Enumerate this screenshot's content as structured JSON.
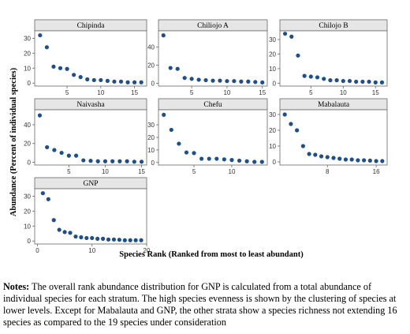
{
  "chart_data": [
    {
      "type": "scatter",
      "title": "Chipinda",
      "color": "#1c4f8c",
      "x": [
        1,
        2,
        3,
        4,
        5,
        6,
        7,
        8,
        9,
        10,
        11,
        12,
        13,
        14,
        15,
        16
      ],
      "values": [
        32,
        24,
        11,
        10,
        9.5,
        5.5,
        4,
        2.5,
        2,
        2,
        1.5,
        1,
        1,
        0.5,
        0.5,
        0.5
      ],
      "xlim": [
        0.2,
        16.8
      ],
      "ylim": [
        -2,
        35
      ],
      "xticks": [
        5,
        10,
        15
      ],
      "yticks": [
        0,
        10,
        20,
        30
      ]
    },
    {
      "type": "scatter",
      "title": "Chiliojo A",
      "color": "#1c4f8c",
      "x": [
        1,
        2,
        3,
        4,
        5,
        6,
        7,
        8,
        9,
        10,
        11,
        12,
        13,
        14,
        15
      ],
      "values": [
        53,
        17,
        16,
        6,
        5,
        4,
        3.5,
        3,
        3,
        2.5,
        2.5,
        2,
        2,
        1.5,
        1
      ],
      "xlim": [
        0.3,
        15.7
      ],
      "ylim": [
        -3,
        58
      ],
      "xticks": [
        5,
        10,
        15
      ],
      "yticks": [
        0,
        20,
        40
      ]
    },
    {
      "type": "scatter",
      "title": "Chilojo B",
      "color": "#1c4f8c",
      "x": [
        1,
        2,
        3,
        4,
        5,
        6,
        7,
        8,
        9,
        10,
        11,
        12,
        13,
        14,
        15,
        16
      ],
      "values": [
        34,
        32,
        19,
        5,
        4.5,
        4,
        3,
        2,
        2,
        1.5,
        1.5,
        1,
        1,
        1,
        0.5,
        0.5
      ],
      "xlim": [
        0.2,
        16.8
      ],
      "ylim": [
        -2,
        36
      ],
      "xticks": [
        5,
        10,
        15
      ],
      "yticks": [
        0,
        10,
        20,
        30
      ]
    },
    {
      "type": "scatter",
      "title": "Naivasha",
      "color": "#1c4f8c",
      "x": [
        1,
        2,
        3,
        4,
        5,
        6,
        7,
        8,
        9,
        10,
        11,
        12,
        13,
        14,
        15
      ],
      "values": [
        50,
        16,
        13,
        10,
        7,
        7,
        2,
        1.5,
        1,
        1,
        1,
        1,
        1,
        0.5,
        0.5
      ],
      "xlim": [
        0.3,
        15.7
      ],
      "ylim": [
        -3,
        56
      ],
      "xticks": [
        5,
        10,
        15
      ],
      "yticks": [
        0,
        20,
        40
      ]
    },
    {
      "type": "scatter",
      "title": "Chefu",
      "color": "#1c4f8c",
      "x": [
        1,
        2,
        3,
        4,
        5,
        6,
        7,
        8,
        9,
        10,
        11,
        12,
        13,
        14
      ],
      "values": [
        38,
        26,
        15,
        8,
        7.5,
        3,
        3,
        3,
        2.5,
        2,
        1.5,
        1,
        0.5,
        0.5
      ],
      "xlim": [
        0.3,
        14.7
      ],
      "ylim": [
        -2,
        42
      ],
      "xticks": [
        5,
        10
      ],
      "yticks": [
        0,
        10,
        20,
        30
      ]
    },
    {
      "type": "scatter",
      "title": "Mabalauta",
      "color": "#1c4f8c",
      "x": [
        1,
        2,
        3,
        4,
        5,
        6,
        7,
        8,
        9,
        10,
        11,
        12,
        13,
        14,
        15,
        16,
        17
      ],
      "values": [
        30,
        24,
        20,
        10,
        5,
        4.5,
        3.5,
        3,
        2.5,
        2,
        1.5,
        1.5,
        1,
        1,
        0.8,
        0.5,
        0.5
      ],
      "xlim": [
        0.2,
        17.8
      ],
      "ylim": [
        -2,
        33
      ],
      "xticks": [
        8,
        16
      ],
      "yticks": [
        0,
        10,
        20,
        30
      ]
    },
    {
      "type": "scatter",
      "title": "GNP",
      "color": "#1c4f8c",
      "x": [
        1,
        2,
        3,
        4,
        5,
        6,
        7,
        8,
        9,
        10,
        11,
        12,
        13,
        14,
        15,
        16,
        17,
        18,
        19
      ],
      "values": [
        32,
        28,
        14,
        7.5,
        6,
        5.5,
        3,
        2.5,
        2,
        2,
        1.5,
        1.5,
        1,
        1,
        0.8,
        0.5,
        0.5,
        0.5,
        0.5
      ],
      "xlim": [
        -0.5,
        20
      ],
      "ylim": [
        -2,
        35
      ],
      "xticks": [
        0,
        10,
        20
      ],
      "yticks": [
        0,
        10,
        20,
        30
      ]
    }
  ],
  "figure": {
    "y_label": "Abundance (Percent of individual species)",
    "x_label": "Species Rank (Ranked from most to least abundant)"
  },
  "notes": {
    "label": "Notes:",
    "text": "The overall rank abundance distribution for GNP is calculated from a total abundance of individual species for each stratum. The high species evenness is shown by the clustering of species at lower levels. Except for Mabalauta and GNP, the other strata show a species richness not extending 16 species as compared to the 19 species under consideration"
  }
}
